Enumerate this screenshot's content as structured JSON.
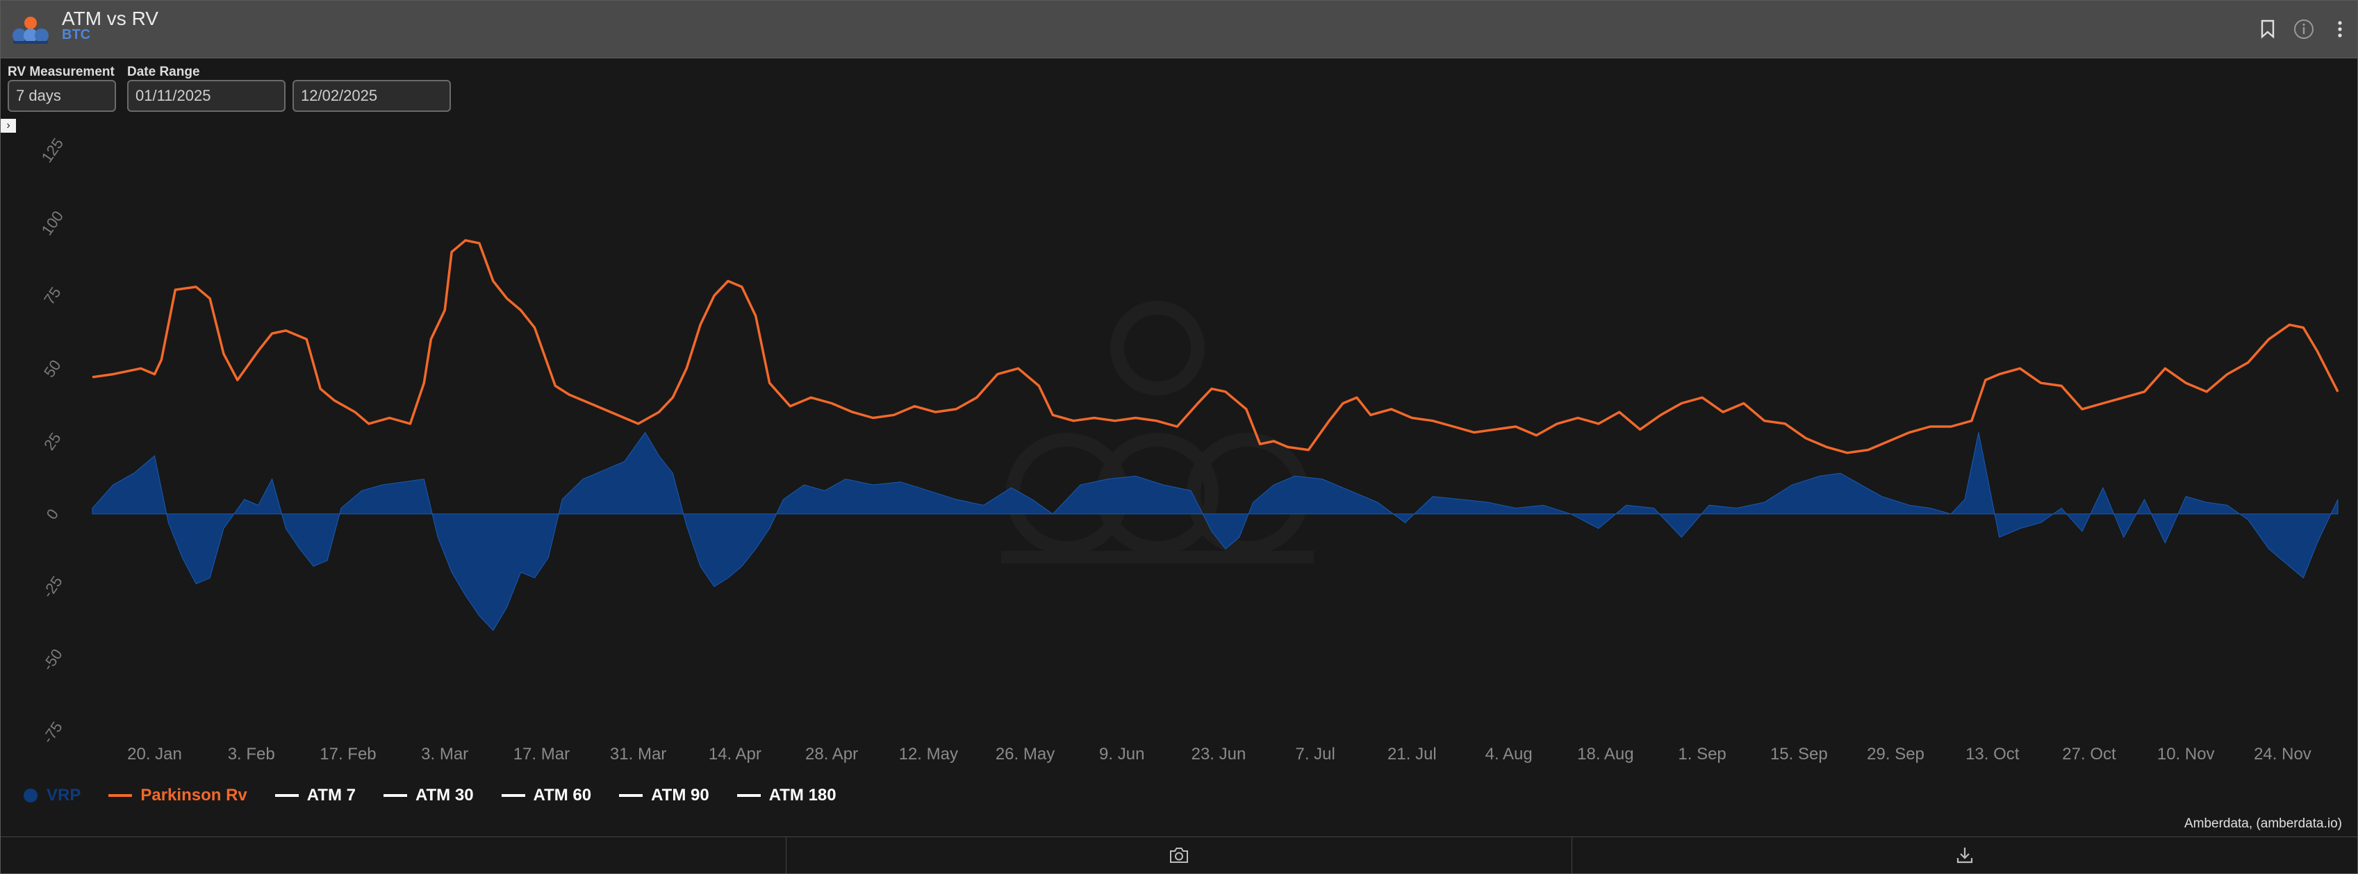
{
  "header": {
    "title": "ATM vs RV",
    "subtitle": "BTC",
    "icons": [
      "bookmark-icon",
      "info-icon",
      "more-vertical-icon"
    ]
  },
  "controls": {
    "rv_label": "RV Measurement",
    "rv_value": "7 days",
    "date_label": "Date Range",
    "date_start": "01/11/2025",
    "date_end": "12/02/2025"
  },
  "colors": {
    "orange": "#f2692a",
    "navy": "#0d3b7c",
    "grid": "#2e2e2e"
  },
  "chart_data": {
    "type": "line",
    "title": "",
    "xlabel": "",
    "ylabel": "",
    "ylim": [
      -75,
      125
    ],
    "yticks": [
      -75,
      -50,
      -25,
      0,
      25,
      50,
      75,
      100,
      125
    ],
    "xticks": [
      "20. Jan",
      "3. Feb",
      "17. Feb",
      "3. Mar",
      "17. Mar",
      "31. Mar",
      "14. Apr",
      "28. Apr",
      "12. May",
      "26. May",
      "9. Jun",
      "23. Jun",
      "7. Jul",
      "21. Jul",
      "4. Aug",
      "18. Aug",
      "1. Sep",
      "15. Sep",
      "29. Sep",
      "13. Oct",
      "27. Oct",
      "10. Nov",
      "24. Nov"
    ],
    "xrange": [
      "2025-01-11",
      "2025-12-02"
    ],
    "grid": false,
    "legend_position": "bottom-left",
    "legend": [
      "VRP",
      "Parkinson Rv",
      "ATM 7",
      "ATM 30",
      "ATM 60",
      "ATM 90",
      "ATM 180"
    ],
    "series": [
      {
        "name": "Parkinson Rv",
        "type": "line",
        "color": "#f2692a",
        "x": [
          "2025-01-11",
          "2025-01-14",
          "2025-01-16",
          "2025-01-18",
          "2025-01-20",
          "2025-01-21",
          "2025-01-23",
          "2025-01-26",
          "2025-01-28",
          "2025-01-30",
          "2025-02-01",
          "2025-02-04",
          "2025-02-06",
          "2025-02-08",
          "2025-02-11",
          "2025-02-13",
          "2025-02-15",
          "2025-02-18",
          "2025-02-20",
          "2025-02-23",
          "2025-02-26",
          "2025-02-28",
          "2025-03-01",
          "2025-03-03",
          "2025-03-04",
          "2025-03-06",
          "2025-03-08",
          "2025-03-10",
          "2025-03-12",
          "2025-03-14",
          "2025-03-16",
          "2025-03-19",
          "2025-03-21",
          "2025-03-24",
          "2025-03-26",
          "2025-03-29",
          "2025-03-31",
          "2025-04-03",
          "2025-04-05",
          "2025-04-07",
          "2025-04-09",
          "2025-04-11",
          "2025-04-13",
          "2025-04-15",
          "2025-04-17",
          "2025-04-19",
          "2025-04-22",
          "2025-04-25",
          "2025-04-28",
          "2025-05-01",
          "2025-05-04",
          "2025-05-07",
          "2025-05-10",
          "2025-05-13",
          "2025-05-16",
          "2025-05-19",
          "2025-05-22",
          "2025-05-25",
          "2025-05-28",
          "2025-05-30",
          "2025-06-02",
          "2025-06-05",
          "2025-06-08",
          "2025-06-11",
          "2025-06-14",
          "2025-06-17",
          "2025-06-20",
          "2025-06-22",
          "2025-06-24",
          "2025-06-27",
          "2025-06-29",
          "2025-07-01",
          "2025-07-03",
          "2025-07-06",
          "2025-07-09",
          "2025-07-11",
          "2025-07-13",
          "2025-07-15",
          "2025-07-18",
          "2025-07-21",
          "2025-07-24",
          "2025-07-27",
          "2025-07-30",
          "2025-08-02",
          "2025-08-05",
          "2025-08-08",
          "2025-08-11",
          "2025-08-14",
          "2025-08-17",
          "2025-08-20",
          "2025-08-23",
          "2025-08-26",
          "2025-08-29",
          "2025-09-01",
          "2025-09-04",
          "2025-09-07",
          "2025-09-10",
          "2025-09-13",
          "2025-09-16",
          "2025-09-19",
          "2025-09-22",
          "2025-09-25",
          "2025-09-28",
          "2025-10-01",
          "2025-10-04",
          "2025-10-07",
          "2025-10-10",
          "2025-10-12",
          "2025-10-14",
          "2025-10-17",
          "2025-10-20",
          "2025-10-23",
          "2025-10-26",
          "2025-10-29",
          "2025-11-01",
          "2025-11-04",
          "2025-11-07",
          "2025-11-10",
          "2025-11-13",
          "2025-11-16",
          "2025-11-19",
          "2025-11-22",
          "2025-11-25",
          "2025-11-27",
          "2025-11-29",
          "2025-12-02"
        ],
        "y": [
          47,
          48,
          49,
          50,
          48,
          53,
          77,
          78,
          74,
          55,
          46,
          56,
          62,
          63,
          60,
          43,
          39,
          35,
          31,
          33,
          31,
          45,
          60,
          70,
          90,
          94,
          93,
          80,
          74,
          70,
          64,
          44,
          41,
          38,
          36,
          33,
          31,
          35,
          40,
          50,
          65,
          75,
          80,
          78,
          68,
          45,
          37,
          40,
          38,
          35,
          33,
          34,
          37,
          35,
          36,
          40,
          48,
          50,
          44,
          34,
          32,
          33,
          32,
          33,
          32,
          30,
          38,
          43,
          42,
          36,
          24,
          25,
          23,
          22,
          32,
          38,
          40,
          34,
          36,
          33,
          32,
          30,
          28,
          29,
          30,
          27,
          31,
          33,
          31,
          35,
          29,
          34,
          38,
          40,
          35,
          38,
          32,
          31,
          26,
          23,
          21,
          22,
          25,
          28,
          30,
          30,
          32,
          46,
          48,
          50,
          45,
          44,
          36,
          38,
          40,
          42,
          50,
          45,
          42,
          48,
          52,
          60,
          65,
          64,
          56,
          42
        ]
      },
      {
        "name": "VRP",
        "type": "area",
        "color": "#0d3b7c",
        "x": [
          "2025-01-11",
          "2025-01-14",
          "2025-01-17",
          "2025-01-20",
          "2025-01-22",
          "2025-01-24",
          "2025-01-26",
          "2025-01-28",
          "2025-01-30",
          "2025-02-02",
          "2025-02-04",
          "2025-02-06",
          "2025-02-08",
          "2025-02-10",
          "2025-02-12",
          "2025-02-14",
          "2025-02-16",
          "2025-02-19",
          "2025-02-22",
          "2025-02-25",
          "2025-02-28",
          "2025-03-02",
          "2025-03-04",
          "2025-03-06",
          "2025-03-08",
          "2025-03-10",
          "2025-03-12",
          "2025-03-14",
          "2025-03-16",
          "2025-03-18",
          "2025-03-20",
          "2025-03-23",
          "2025-03-26",
          "2025-03-29",
          "2025-04-01",
          "2025-04-03",
          "2025-04-05",
          "2025-04-07",
          "2025-04-09",
          "2025-04-11",
          "2025-04-13",
          "2025-04-15",
          "2025-04-17",
          "2025-04-19",
          "2025-04-21",
          "2025-04-24",
          "2025-04-27",
          "2025-04-30",
          "2025-05-04",
          "2025-05-08",
          "2025-05-12",
          "2025-05-16",
          "2025-05-20",
          "2025-05-24",
          "2025-05-27",
          "2025-05-30",
          "2025-06-03",
          "2025-06-07",
          "2025-06-11",
          "2025-06-15",
          "2025-06-19",
          "2025-06-22",
          "2025-06-24",
          "2025-06-26",
          "2025-06-28",
          "2025-07-01",
          "2025-07-04",
          "2025-07-08",
          "2025-07-12",
          "2025-07-16",
          "2025-07-20",
          "2025-07-24",
          "2025-07-28",
          "2025-08-01",
          "2025-08-05",
          "2025-08-09",
          "2025-08-13",
          "2025-08-17",
          "2025-08-21",
          "2025-08-25",
          "2025-08-29",
          "2025-09-02",
          "2025-09-06",
          "2025-09-10",
          "2025-09-14",
          "2025-09-18",
          "2025-09-21",
          "2025-09-24",
          "2025-09-27",
          "2025-10-01",
          "2025-10-04",
          "2025-10-07",
          "2025-10-09",
          "2025-10-11",
          "2025-10-14",
          "2025-10-17",
          "2025-10-20",
          "2025-10-23",
          "2025-10-26",
          "2025-10-29",
          "2025-11-01",
          "2025-11-04",
          "2025-11-07",
          "2025-11-10",
          "2025-11-13",
          "2025-11-16",
          "2025-11-19",
          "2025-11-22",
          "2025-11-25",
          "2025-11-27",
          "2025-11-29",
          "2025-12-02"
        ],
        "y": [
          2,
          10,
          14,
          20,
          -3,
          -15,
          -24,
          -22,
          -5,
          5,
          3,
          12,
          -5,
          -12,
          -18,
          -16,
          2,
          8,
          10,
          11,
          12,
          -8,
          -20,
          -28,
          -35,
          -40,
          -32,
          -20,
          -22,
          -15,
          5,
          12,
          15,
          18,
          28,
          20,
          14,
          -4,
          -18,
          -25,
          -22,
          -18,
          -12,
          -5,
          5,
          10,
          8,
          12,
          10,
          11,
          8,
          5,
          3,
          9,
          5,
          0,
          10,
          12,
          13,
          10,
          8,
          -6,
          -12,
          -8,
          4,
          10,
          13,
          12,
          8,
          4,
          -3,
          6,
          5,
          4,
          2,
          3,
          0,
          -5,
          3,
          2,
          -8,
          3,
          2,
          4,
          10,
          13,
          14,
          10,
          6,
          3,
          2,
          0,
          5,
          28,
          -8,
          -5,
          -3,
          2,
          -6,
          9,
          -8,
          5,
          -10,
          6,
          4,
          3,
          -2,
          -12,
          -18,
          -22,
          -10,
          5
        ]
      }
    ]
  },
  "credits": "Amberdata, (amberdata.io)",
  "footer": {
    "icons": [
      "camera-icon",
      "download-icon"
    ]
  }
}
